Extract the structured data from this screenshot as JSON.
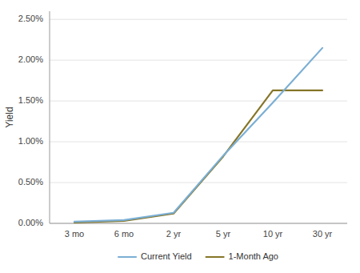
{
  "chart_data": {
    "type": "line",
    "categories": [
      "3 mo",
      "6 mo",
      "2 yr",
      "5 yr",
      "10 yr",
      "30 yr"
    ],
    "series": [
      {
        "name": "Current Yield",
        "color": "#7BAFD4",
        "values": [
          0.0002,
          0.0004,
          0.0013,
          0.0083,
          0.0148,
          0.0215
        ]
      },
      {
        "name": "1-Month Ago",
        "color": "#857527",
        "values": [
          0.0001,
          0.0003,
          0.0012,
          0.0082,
          0.0163,
          0.0163
        ]
      }
    ],
    "ylabel": "Yield",
    "ylim": [
      0.0,
      0.026
    ],
    "yticks": [
      {
        "value": 0.0,
        "label": "0.00%"
      },
      {
        "value": 0.005,
        "label": "0.50%"
      },
      {
        "value": 0.01,
        "label": "1.00%"
      },
      {
        "value": 0.015,
        "label": "1.50%"
      },
      {
        "value": 0.02,
        "label": "2.00%"
      },
      {
        "value": 0.025,
        "label": "2.50%"
      }
    ],
    "grid": true,
    "legend": "bottom"
  }
}
